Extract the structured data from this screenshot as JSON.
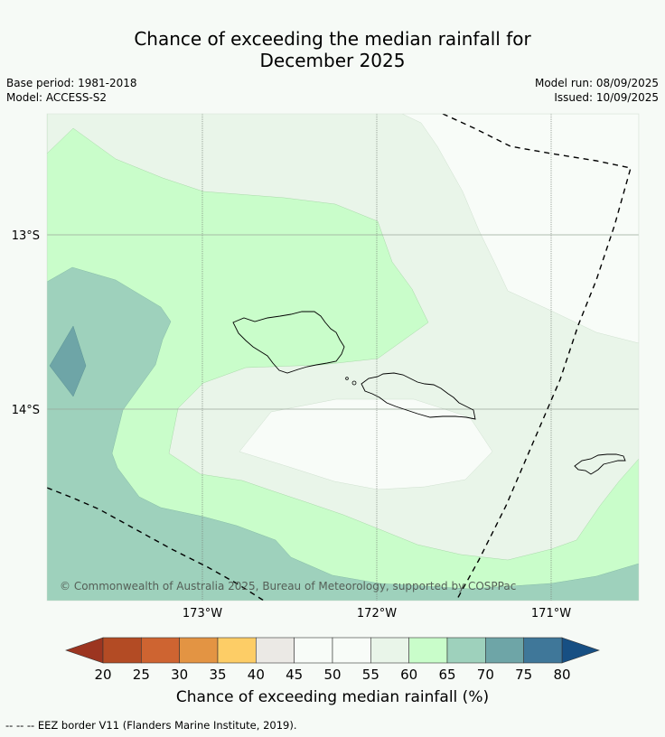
{
  "title_line1": "Chance of exceeding the median rainfall for",
  "title_line2": "December 2025",
  "base_period": "Base period: 1981-2018",
  "model": "Model: ACCESS-S2",
  "model_run": "Model run: 08/09/2025",
  "issued": "Issued: 10/09/2025",
  "lat_labels": [
    "13°S",
    "14°S"
  ],
  "lon_labels": [
    "173°W",
    "172°W",
    "171°W"
  ],
  "copyright": "© Commonwealth of Australia 2025, Bureau of Meteorology, supported by COSPPac",
  "colorbar": {
    "ticks": [
      "20",
      "25",
      "30",
      "35",
      "40",
      "45",
      "50",
      "55",
      "60",
      "65",
      "70",
      "75",
      "80"
    ],
    "title": "Chance of exceeding median rainfall (%)",
    "colors": [
      "#b34b24",
      "#ce6431",
      "#e39443",
      "#fdcd66",
      "#ebe9e5",
      "#f8fcf8",
      "#f8fcf8",
      "#e9f5e9",
      "#c9fdca",
      "#9ed1bc",
      "#6ea5a7",
      "#3f7799"
    ],
    "low_extend_color": "#9c3520",
    "high_extend_color": "#174f83"
  },
  "footnote": "--  --  -- EEZ border V11 (Flanders Marine Institute, 2019)."
}
